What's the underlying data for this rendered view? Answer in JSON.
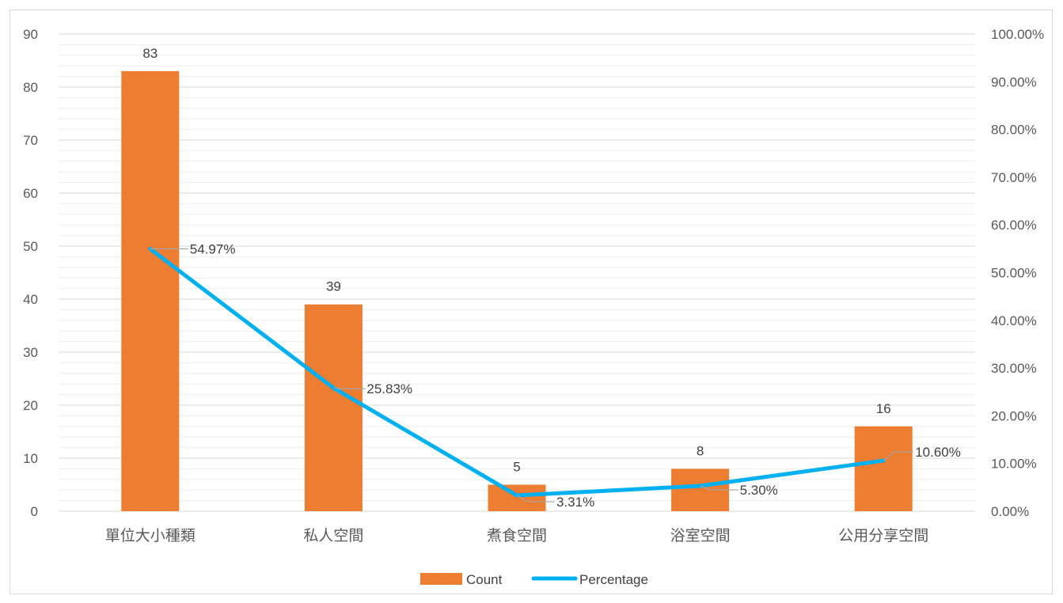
{
  "chart_data": {
    "type": "bar",
    "categories": [
      "單位大小種類",
      "私人空間",
      "煮食空間",
      "浴室空間",
      "公用分享空間"
    ],
    "series": [
      {
        "name": "Count",
        "type": "bar",
        "axis": "left",
        "values": [
          83,
          39,
          5,
          8,
          16
        ],
        "color": "#ED7D31",
        "labels": [
          "83",
          "39",
          "5",
          "8",
          "16"
        ]
      },
      {
        "name": "Percentage",
        "type": "line",
        "axis": "right",
        "values": [
          54.97,
          25.83,
          3.31,
          5.3,
          10.6
        ],
        "color": "#00B0F0",
        "labels": [
          "54.97%",
          "25.83%",
          "3.31%",
          "5.30%",
          "10.60%"
        ]
      }
    ],
    "y_left": {
      "min": 0,
      "max": 90,
      "major_step": 10,
      "minor_step": 2,
      "tick_labels": [
        "0",
        "10",
        "20",
        "30",
        "40",
        "50",
        "60",
        "70",
        "80",
        "90"
      ]
    },
    "y_right": {
      "min": 0,
      "max": 100,
      "major_step": 10,
      "tick_labels": [
        "0.00%",
        "10.00%",
        "20.00%",
        "30.00%",
        "40.00%",
        "50.00%",
        "60.00%",
        "70.00%",
        "80.00%",
        "90.00%",
        "100.00%"
      ]
    },
    "grid": true,
    "legend": {
      "position": "bottom",
      "entries": [
        "Count",
        "Percentage"
      ]
    },
    "colors": {
      "gridline_major": "#D9D9D9",
      "gridline_minor": "#EEEEEE",
      "leader": "#A6A6A6"
    }
  }
}
